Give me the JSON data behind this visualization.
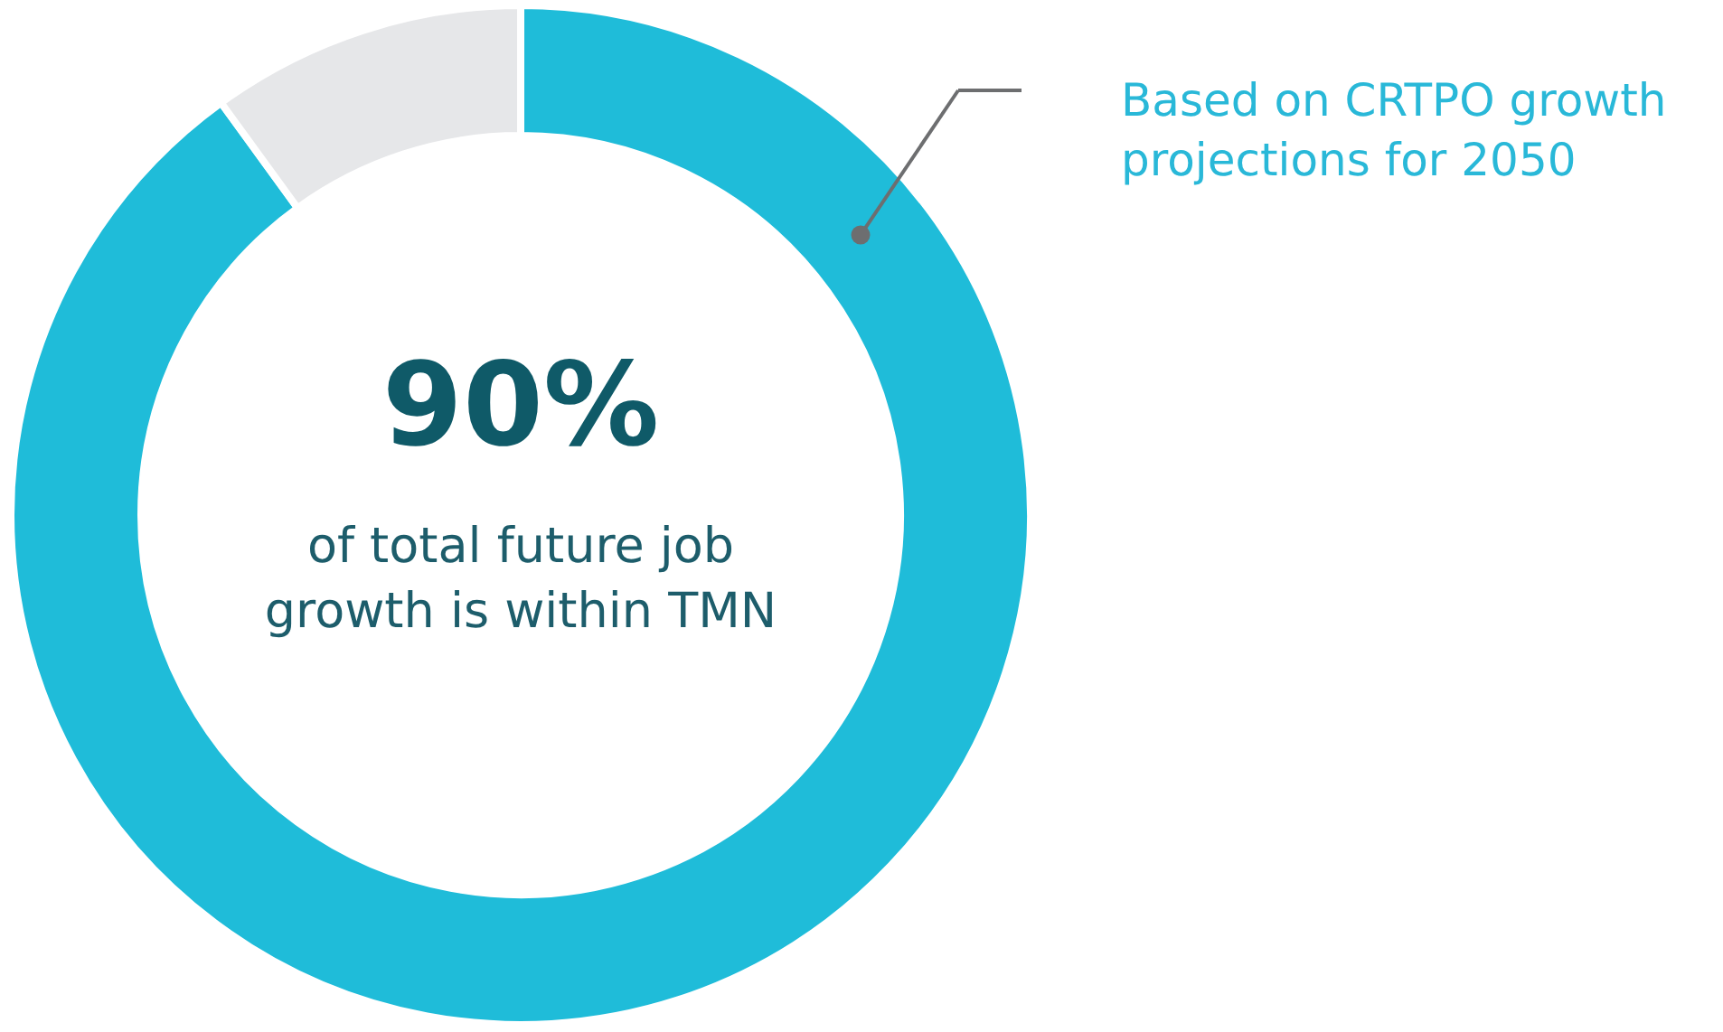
{
  "chart_data": {
    "type": "donut",
    "categories": [
      null,
      null
    ],
    "values": [
      90,
      10
    ],
    "colors": [
      "#1fbcd9",
      "#e6e7e9"
    ],
    "value_labels": [
      "90%",
      null
    ],
    "annotations": [
      "of total future job growth is within TMN",
      {
        "text": "Based on CRTPO growth projections for 2050"
      }
    ]
  }
}
